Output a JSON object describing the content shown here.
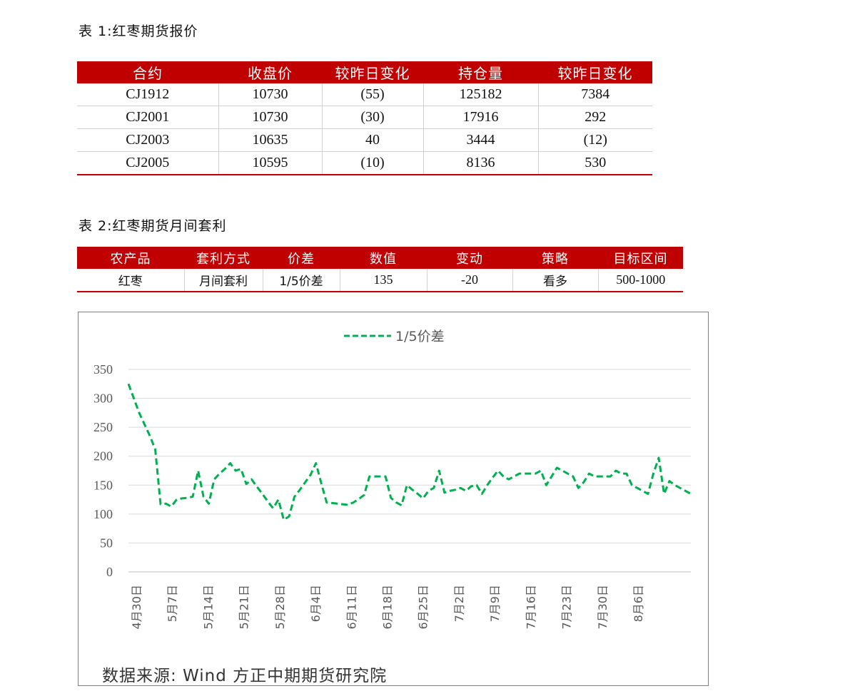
{
  "table1": {
    "caption": "表 1:红枣期货报价",
    "headers": [
      "合约",
      "收盘价",
      "较昨日变化",
      "持仓量",
      "较昨日变化"
    ],
    "rows": [
      [
        "CJ1912",
        "10730",
        "(55)",
        "125182",
        "7384"
      ],
      [
        "CJ2001",
        "10730",
        "(30)",
        "17916",
        "292"
      ],
      [
        "CJ2003",
        "10635",
        "40",
        "3444",
        "(12)"
      ],
      [
        "CJ2005",
        "10595",
        "(10)",
        "8136",
        "530"
      ]
    ]
  },
  "table2": {
    "caption": "表 2:红枣期货月间套利",
    "headers": [
      "农产品",
      "套利方式",
      "价差",
      "数值",
      "变动",
      "策略",
      "目标区间"
    ],
    "rows": [
      [
        "红枣",
        "月间套利",
        "1/5价差",
        "135",
        "-20",
        "看多",
        "500-1000"
      ]
    ]
  },
  "colors": {
    "header_bg": "#c00000",
    "negative": "#e00000",
    "series": "#00b050"
  },
  "source": "数据来源: Wind 方正中期期货研究院",
  "chart_data": {
    "type": "line",
    "title": "",
    "xlabel": "",
    "ylabel": "",
    "ylim": [
      0,
      350
    ],
    "yticks": [
      "0",
      "50",
      "100",
      "150",
      "200",
      "250",
      "300",
      "350"
    ],
    "grid": true,
    "legend_position": "top-center",
    "xtick_labels": [
      "4月30日",
      "5月7日",
      "5月14日",
      "5月21日",
      "5月28日",
      "6月4日",
      "6月11日",
      "6月18日",
      "6月25日",
      "7月2日",
      "7月9日",
      "7月16日",
      "7月23日",
      "7月30日",
      "8月6日"
    ],
    "series": [
      {
        "name": "1/5价差",
        "style": "dashed",
        "values": [
          325,
          300,
          275,
          255,
          235,
          212,
          117,
          118,
          113,
          125,
          127,
          128,
          130,
          175,
          130,
          118,
          160,
          170,
          178,
          188,
          175,
          178,
          152,
          160,
          147,
          135,
          122,
          110,
          125,
          90,
          96,
          130,
          142,
          155,
          168,
          188,
          153,
          120,
          119,
          118,
          117,
          116,
          120,
          126,
          133,
          165,
          165,
          165,
          165,
          128,
          120,
          115,
          150,
          142,
          135,
          127,
          140,
          145,
          175,
          137,
          140,
          142,
          145,
          140,
          148,
          150,
          135,
          150,
          163,
          175,
          165,
          160,
          165,
          170,
          170,
          170,
          170,
          175,
          150,
          165,
          180,
          175,
          170,
          165,
          145,
          155,
          170,
          165,
          165,
          165,
          165,
          175,
          170,
          170,
          150,
          145,
          140,
          135,
          170,
          197,
          135,
          157,
          150,
          145,
          140,
          135
        ]
      }
    ]
  }
}
